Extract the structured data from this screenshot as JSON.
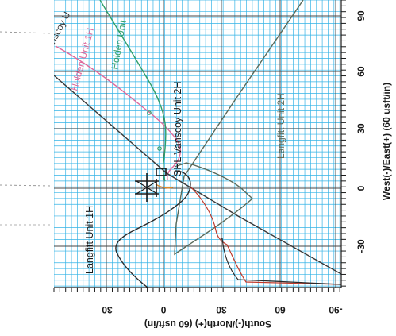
{
  "plot": {
    "y_axis_label": "West(-)/East(+) (60 usft/in)",
    "x_axis_label": "South(-)/North(+) (60 usft/in)",
    "y_ticks": [
      "90",
      "60",
      "30",
      "0",
      "-30"
    ],
    "x_ticks": [
      "30",
      "0",
      "30",
      "60",
      "-90"
    ]
  },
  "annotations": {
    "vanscoy_top": "Vanscoy U",
    "holden_1h": "Holden Unit 1H",
    "holden_unit": "Holden Unit",
    "vanscoy_2h": "Vanscoy Unit 2H",
    "shl_prefix": "SHL",
    "langfitt_2h": "Langfitt Unit 2H",
    "langfitt_1h": "Langfitt Unit 1H"
  },
  "colors": {
    "grid_blue": "#35b3e6",
    "major_grid": "#444444",
    "holden_1h": "#e0679a",
    "holden_unit": "#2f9e6a",
    "wellbore": "#3a3a3a",
    "langfitt_2h": "#5a6a5a",
    "langfitt_1h_red": "#c0392b",
    "orange": "#e08a2a"
  }
}
